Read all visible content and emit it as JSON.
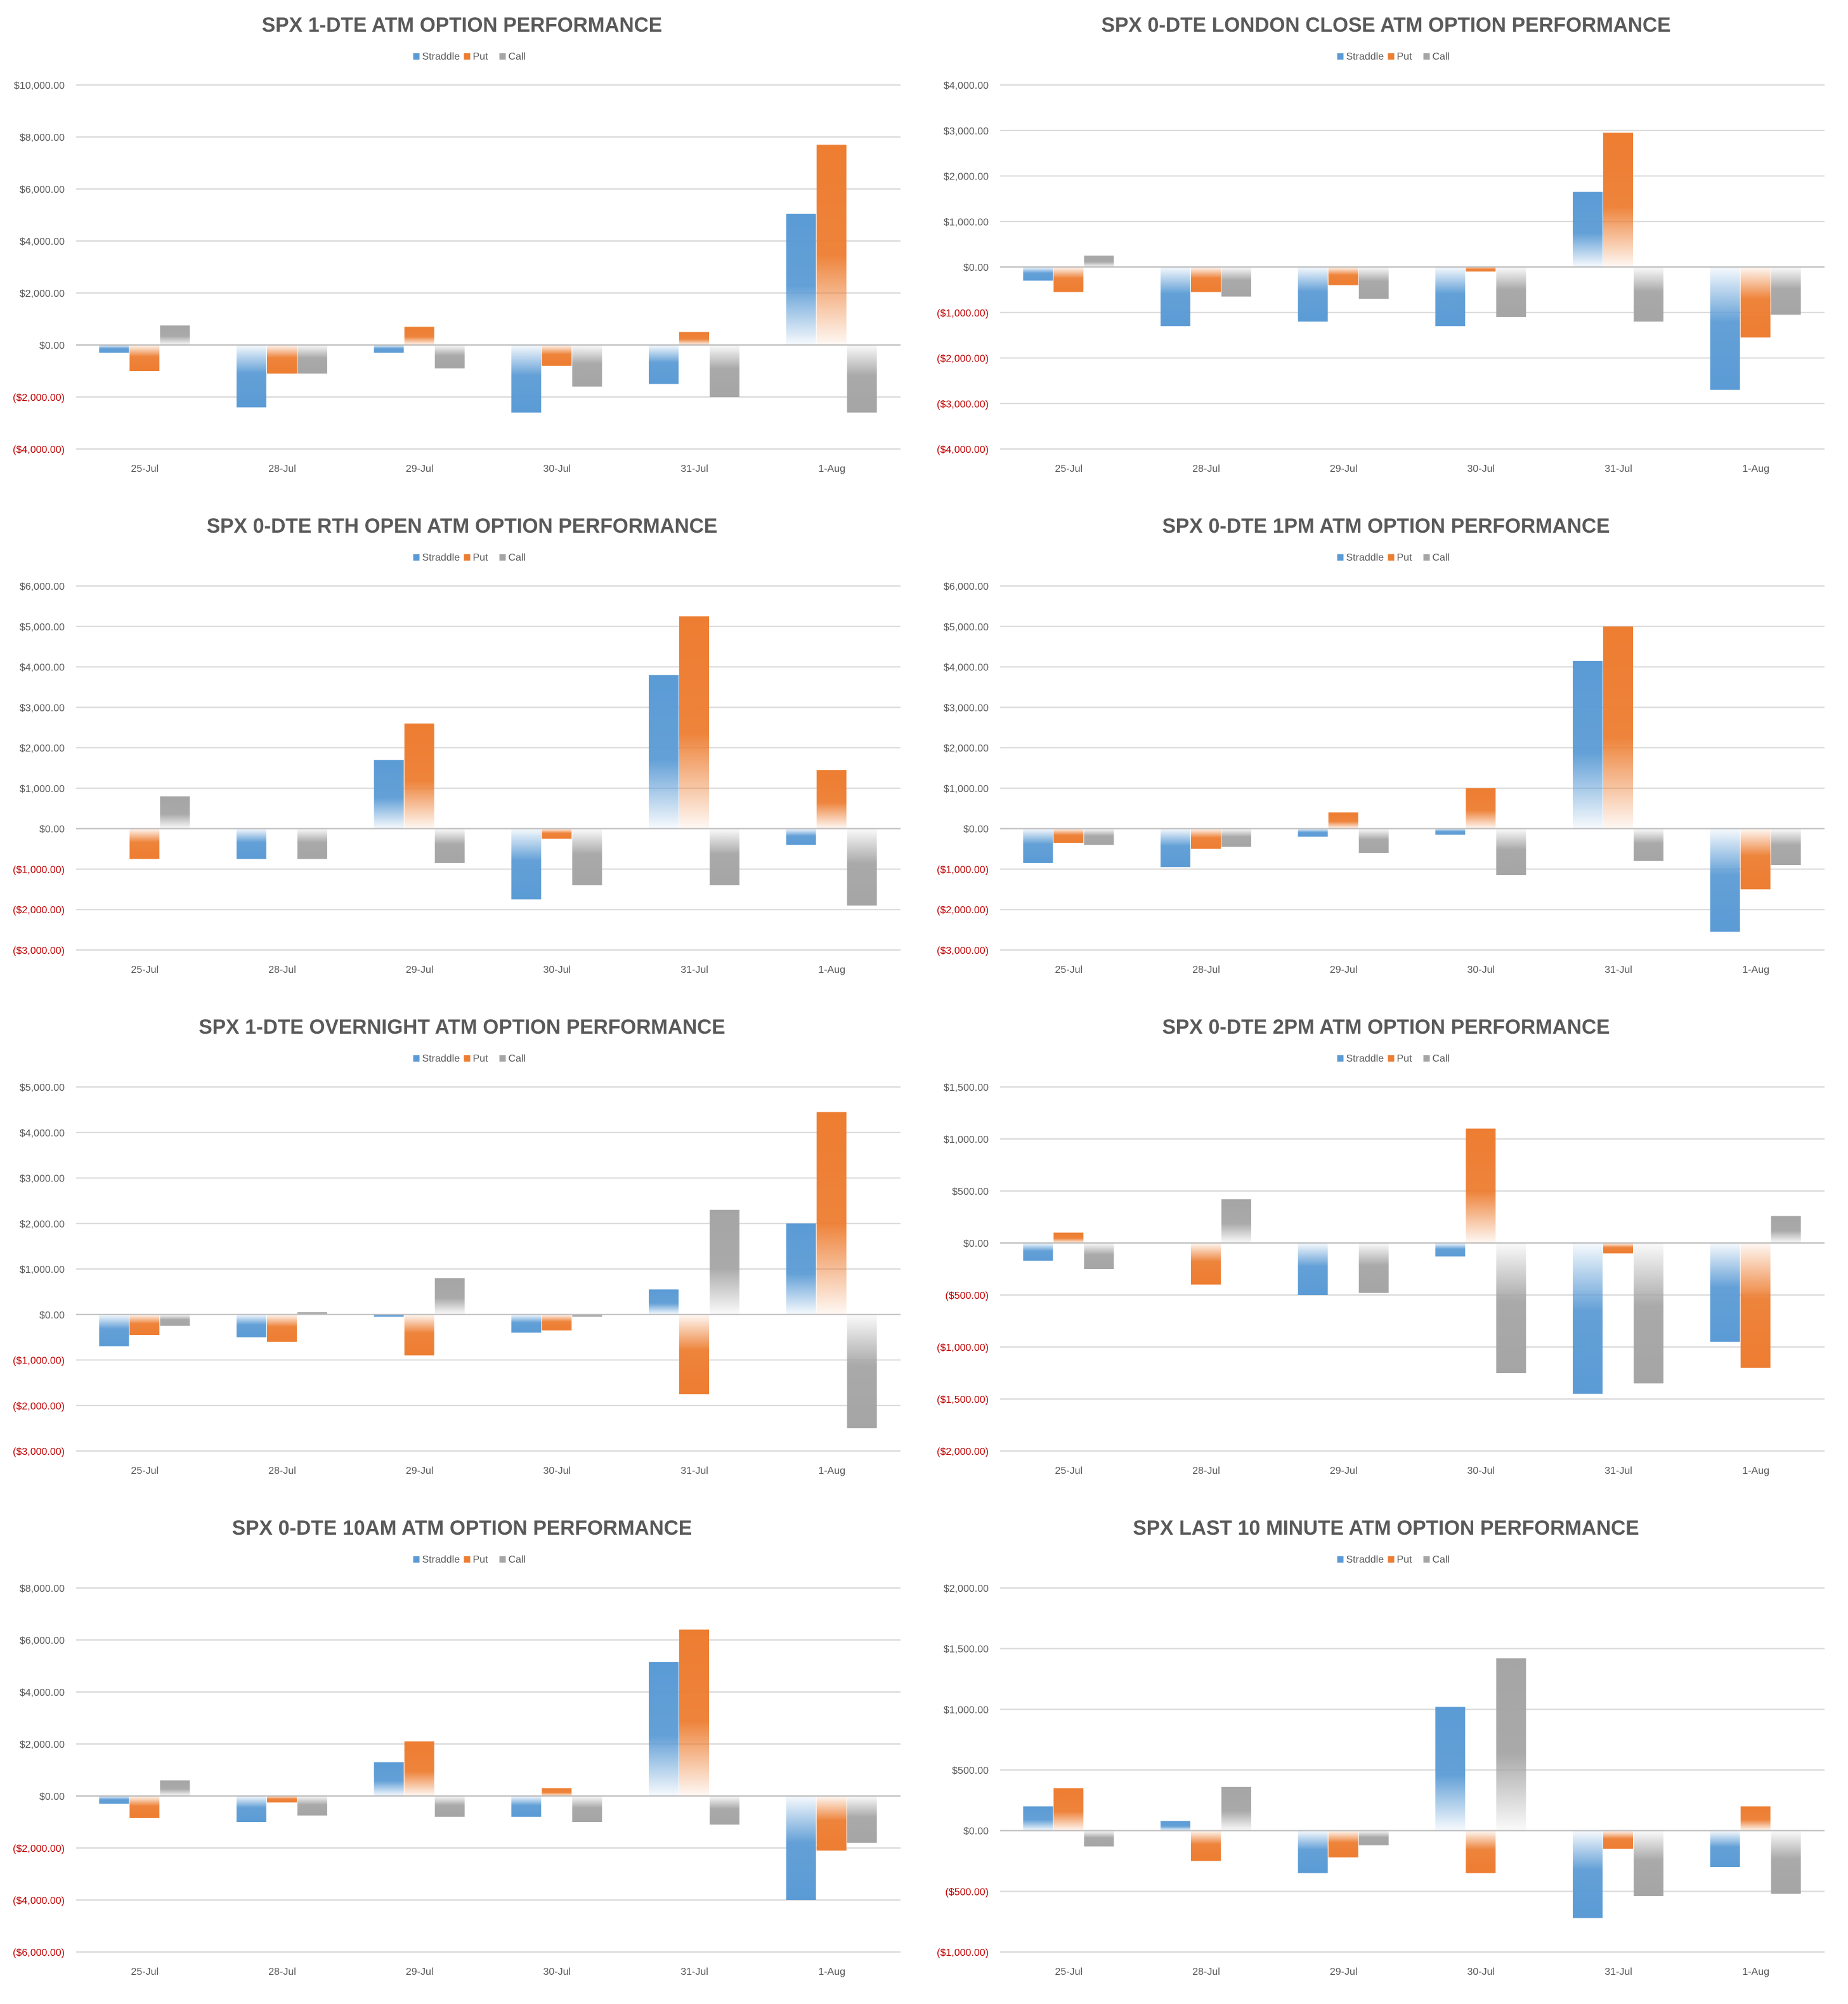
{
  "colors": {
    "straddle": "#5b9bd5",
    "put": "#ed7d31",
    "call": "#a5a5a5",
    "text": "#595959",
    "negative": "#c00000",
    "grid": "#d9d9d9"
  },
  "legend": [
    "Straddle",
    "Put",
    "Call"
  ],
  "chart_data": [
    {
      "type": "bar",
      "title": "SPX 1-DTE ATM OPTION PERFORMANCE",
      "categories": [
        "25-Jul",
        "28-Jul",
        "29-Jul",
        "30-Jul",
        "31-Jul",
        "1-Aug"
      ],
      "series": [
        {
          "name": "Straddle",
          "values": [
            -300,
            -2400,
            -300,
            -2600,
            -1500,
            5050
          ]
        },
        {
          "name": "Put",
          "values": [
            -1000,
            -1100,
            700,
            -800,
            500,
            7700
          ]
        },
        {
          "name": "Call",
          "values": [
            750,
            -1100,
            -900,
            -1600,
            -2000,
            -2600
          ]
        }
      ],
      "ylim": [
        -4000,
        10000
      ],
      "yticks": [
        10000,
        8000,
        6000,
        4000,
        2000,
        0,
        -2000,
        -4000
      ],
      "ytick_labels": [
        "$10,000.00",
        "$8,000.00",
        "$6,000.00",
        "$4,000.00",
        "$2,000.00",
        "$0.00",
        "($2,000.00)",
        "($4,000.00)"
      ]
    },
    {
      "type": "bar",
      "title": "SPX 0-DTE  LONDON CLOSE ATM OPTION PERFORMANCE",
      "categories": [
        "25-Jul",
        "28-Jul",
        "29-Jul",
        "30-Jul",
        "31-Jul",
        "1-Aug"
      ],
      "series": [
        {
          "name": "Straddle",
          "values": [
            -300,
            -1300,
            -1200,
            -1300,
            1650,
            -2700
          ]
        },
        {
          "name": "Put",
          "values": [
            -550,
            -550,
            -400,
            -100,
            2950,
            -1550
          ]
        },
        {
          "name": "Call",
          "values": [
            250,
            -650,
            -700,
            -1100,
            -1200,
            -1050
          ]
        }
      ],
      "ylim": [
        -4000,
        4000
      ],
      "yticks": [
        4000,
        3000,
        2000,
        1000,
        0,
        -1000,
        -2000,
        -3000,
        -4000
      ],
      "ytick_labels": [
        "$4,000.00",
        "$3,000.00",
        "$2,000.00",
        "$1,000.00",
        "$0.00",
        "($1,000.00)",
        "($2,000.00)",
        "($3,000.00)",
        "($4,000.00)"
      ]
    },
    {
      "type": "bar",
      "title": "SPX 0-DTE RTH OPEN ATM OPTION PERFORMANCE",
      "categories": [
        "25-Jul",
        "28-Jul",
        "29-Jul",
        "30-Jul",
        "31-Jul",
        "1-Aug"
      ],
      "series": [
        {
          "name": "Straddle",
          "values": [
            0,
            -750,
            1700,
            -1750,
            3800,
            -400
          ]
        },
        {
          "name": "Put",
          "values": [
            -750,
            0,
            2600,
            -250,
            5250,
            1450
          ]
        },
        {
          "name": "Call",
          "values": [
            800,
            -750,
            -850,
            -1400,
            -1400,
            -1900
          ]
        }
      ],
      "ylim": [
        -3000,
        6000
      ],
      "yticks": [
        6000,
        5000,
        4000,
        3000,
        2000,
        1000,
        0,
        -1000,
        -2000,
        -3000
      ],
      "ytick_labels": [
        "$6,000.00",
        "$5,000.00",
        "$4,000.00",
        "$3,000.00",
        "$2,000.00",
        "$1,000.00",
        "$0.00",
        "($1,000.00)",
        "($2,000.00)",
        "($3,000.00)"
      ]
    },
    {
      "type": "bar",
      "title": "SPX 0-DTE 1PM ATM OPTION PERFORMANCE",
      "categories": [
        "25-Jul",
        "28-Jul",
        "29-Jul",
        "30-Jul",
        "31-Jul",
        "1-Aug"
      ],
      "series": [
        {
          "name": "Straddle",
          "values": [
            -850,
            -950,
            -200,
            -150,
            4150,
            -2550
          ]
        },
        {
          "name": "Put",
          "values": [
            -350,
            -500,
            400,
            1000,
            5000,
            -1500
          ]
        },
        {
          "name": "Call",
          "values": [
            -400,
            -450,
            -600,
            -1150,
            -800,
            -900
          ]
        }
      ],
      "ylim": [
        -3000,
        6000
      ],
      "yticks": [
        6000,
        5000,
        4000,
        3000,
        2000,
        1000,
        0,
        -1000,
        -2000,
        -3000
      ],
      "ytick_labels": [
        "$6,000.00",
        "$5,000.00",
        "$4,000.00",
        "$3,000.00",
        "$2,000.00",
        "$1,000.00",
        "$0.00",
        "($1,000.00)",
        "($2,000.00)",
        "($3,000.00)"
      ]
    },
    {
      "type": "bar",
      "title": "SPX 1-DTE OVERNIGHT ATM OPTION PERFORMANCE",
      "categories": [
        "25-Jul",
        "28-Jul",
        "29-Jul",
        "30-Jul",
        "31-Jul",
        "1-Aug"
      ],
      "series": [
        {
          "name": "Straddle",
          "values": [
            -700,
            -500,
            -50,
            -400,
            550,
            2000
          ]
        },
        {
          "name": "Put",
          "values": [
            -450,
            -600,
            -900,
            -350,
            -1750,
            4450
          ]
        },
        {
          "name": "Call",
          "values": [
            -250,
            50,
            800,
            -50,
            2300,
            -2500
          ]
        }
      ],
      "ylim": [
        -3000,
        5000
      ],
      "yticks": [
        5000,
        4000,
        3000,
        2000,
        1000,
        0,
        -1000,
        -2000,
        -3000
      ],
      "ytick_labels": [
        "$5,000.00",
        "$4,000.00",
        "$3,000.00",
        "$2,000.00",
        "$1,000.00",
        "$0.00",
        "($1,000.00)",
        "($2,000.00)",
        "($3,000.00)"
      ]
    },
    {
      "type": "bar",
      "title": "SPX 0-DTE 2PM ATM OPTION PERFORMANCE",
      "categories": [
        "25-Jul",
        "28-Jul",
        "29-Jul",
        "30-Jul",
        "31-Jul",
        "1-Aug"
      ],
      "series": [
        {
          "name": "Straddle",
          "values": [
            -170,
            0,
            -500,
            -130,
            -1450,
            -950
          ]
        },
        {
          "name": "Put",
          "values": [
            100,
            -400,
            0,
            1100,
            -100,
            -1200
          ]
        },
        {
          "name": "Call",
          "values": [
            -250,
            420,
            -480,
            -1250,
            -1350,
            260
          ]
        }
      ],
      "ylim": [
        -2000,
        1500
      ],
      "yticks": [
        1500,
        1000,
        500,
        0,
        -500,
        -1000,
        -1500,
        -2000
      ],
      "ytick_labels": [
        "$1,500.00",
        "$1,000.00",
        "$500.00",
        "$0.00",
        "($500.00)",
        "($1,000.00)",
        "($1,500.00)",
        "($2,000.00)"
      ]
    },
    {
      "type": "bar",
      "title": "SPX 0-DTE 10AM ATM OPTION PERFORMANCE",
      "categories": [
        "25-Jul",
        "28-Jul",
        "29-Jul",
        "30-Jul",
        "31-Jul",
        "1-Aug"
      ],
      "series": [
        {
          "name": "Straddle",
          "values": [
            -300,
            -1000,
            1300,
            -800,
            5150,
            -4000
          ]
        },
        {
          "name": "Put",
          "values": [
            -850,
            -250,
            2100,
            300,
            6400,
            -2100
          ]
        },
        {
          "name": "Call",
          "values": [
            600,
            -750,
            -800,
            -1000,
            -1100,
            -1800
          ]
        }
      ],
      "ylim": [
        -6000,
        8000
      ],
      "yticks": [
        8000,
        6000,
        4000,
        2000,
        0,
        -2000,
        -4000,
        -6000
      ],
      "ytick_labels": [
        "$8,000.00",
        "$6,000.00",
        "$4,000.00",
        "$2,000.00",
        "$0.00",
        "($2,000.00)",
        "($4,000.00)",
        "($6,000.00)"
      ]
    },
    {
      "type": "bar",
      "title": "SPX LAST 10 MINUTE ATM OPTION PERFORMANCE",
      "categories": [
        "25-Jul",
        "28-Jul",
        "29-Jul",
        "30-Jul",
        "31-Jul",
        "1-Aug"
      ],
      "series": [
        {
          "name": "Straddle",
          "values": [
            200,
            80,
            -350,
            1020,
            -720,
            -300
          ]
        },
        {
          "name": "Put",
          "values": [
            350,
            -250,
            -220,
            -350,
            -150,
            200
          ]
        },
        {
          "name": "Call",
          "values": [
            -130,
            360,
            -120,
            1420,
            -540,
            -520
          ]
        }
      ],
      "ylim": [
        -1000,
        2000
      ],
      "yticks": [
        2000,
        1500,
        1000,
        500,
        0,
        -500,
        -1000
      ],
      "ytick_labels": [
        "$2,000.00",
        "$1,500.00",
        "$1,000.00",
        "$500.00",
        "$0.00",
        "($500.00)",
        "($1,000.00)"
      ]
    }
  ]
}
